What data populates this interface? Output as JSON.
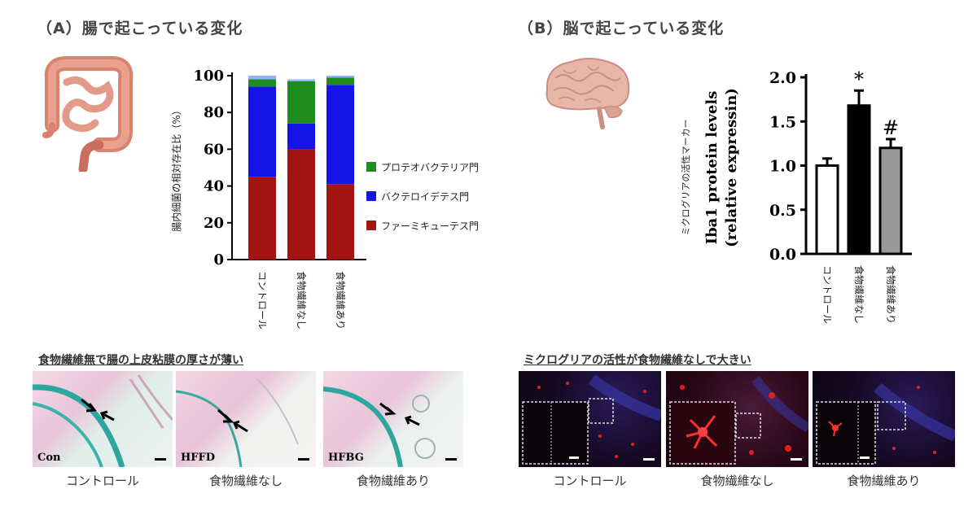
{
  "panelA": {
    "title": "（A）腸で起こっている変化",
    "organ_icon": "intestine-icon",
    "chart": {
      "ylabel": "腸内細菌の相対存在比（%）",
      "categories": [
        "コントロール",
        "食物繊維なし",
        "食物繊維あり"
      ],
      "yticks": [
        "0",
        "20",
        "40",
        "60",
        "80",
        "100"
      ],
      "legend": [
        "プロテオバクテリア門",
        "バクテロイデテス門",
        "ファーミキューテス門"
      ],
      "colors": {
        "firmicutes": "#a31515",
        "bacteroidetes": "#1414e6",
        "proteobacteria": "#1e8c1e",
        "other": "#8fb4ff"
      }
    },
    "section_title": "食物繊維無で腸の上皮粘膜の厚さが薄い",
    "images": [
      {
        "label": "Con",
        "caption": "コントロール"
      },
      {
        "label": "HFFD",
        "caption": "食物繊維なし"
      },
      {
        "label": "HFBG",
        "caption": "食物繊維あり"
      }
    ]
  },
  "panelB": {
    "title": "（B）脳で起こっている変化",
    "organ_icon": "brain-icon",
    "chart": {
      "ylabel_jp": "ミクログリアの活性マーカー",
      "ylabel_line1": "Iba1 protein levels",
      "ylabel_line2": "(relative expressin)",
      "categories": [
        "コントロール",
        "食物繊維なし",
        "食物繊維あり"
      ],
      "yticks": [
        "0.0",
        "0.5",
        "1.0",
        "1.5",
        "2.0"
      ],
      "markers": [
        "",
        "*",
        "#"
      ]
    },
    "section_title": "ミクログリアの活性が食物繊維なしで大きい",
    "images": [
      {
        "caption": "コントロール"
      },
      {
        "caption": "食物繊維なし"
      },
      {
        "caption": "食物繊維あり"
      }
    ]
  },
  "chart_data": [
    {
      "type": "bar",
      "stacked": true,
      "categories": [
        "コントロール",
        "食物繊維なし",
        "食物繊維あり"
      ],
      "ylabel": "腸内細菌の相対存在比（%）",
      "ylim": [
        0,
        100
      ],
      "series": [
        {
          "name": "ファーミキューテス門",
          "values": [
            45,
            60,
            41
          ]
        },
        {
          "name": "バクテロイデテス門",
          "values": [
            49,
            14,
            54
          ]
        },
        {
          "name": "プロテオバクテリア門",
          "values": [
            4,
            23,
            4
          ]
        },
        {
          "values": [
            2,
            1,
            1
          ]
        }
      ],
      "legend_position": "right"
    },
    {
      "type": "bar",
      "categories": [
        "コントロール",
        "食物繊維なし",
        "食物繊維あり"
      ],
      "ylabel": "Iba1 protein levels (relative expressin)",
      "ylim": [
        0,
        2.0
      ],
      "values": [
        1.0,
        1.68,
        1.2
      ],
      "errors": [
        0.08,
        0.17,
        0.1
      ],
      "bar_colors": [
        "#ffffff",
        "#000000",
        "#999999"
      ],
      "annotations": [
        "",
        "*",
        "#"
      ]
    }
  ]
}
